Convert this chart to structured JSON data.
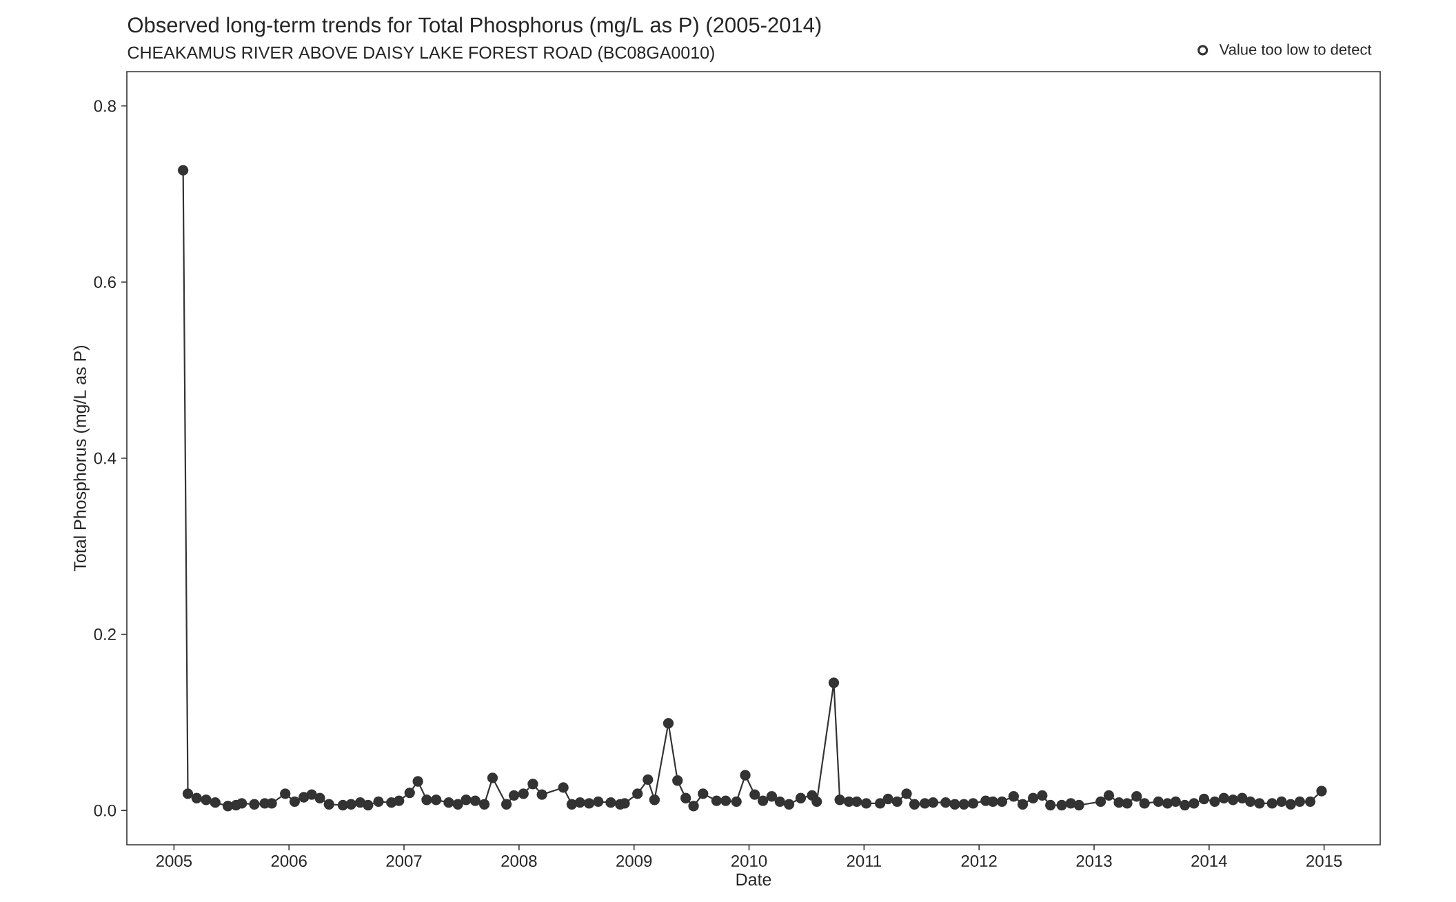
{
  "chart_data": {
    "type": "line",
    "title": "Observed long-term trends for Total Phosphorus (mg/L as P) (2005-2014)",
    "subtitle": "CHEAKAMUS RIVER ABOVE DAISY LAKE FOREST ROAD (BC08GA0010)",
    "xlabel": "Date",
    "ylabel": "Total Phosphorus (mg/L as P)",
    "xlim": [
      "2004-08-04",
      "2015-06-28"
    ],
    "xticks": [
      "2005",
      "2006",
      "2007",
      "2008",
      "2009",
      "2010",
      "2011",
      "2012",
      "2013",
      "2014",
      "2015"
    ],
    "ylim": [
      -0.039,
      0.839
    ],
    "yticks": [
      {
        "value": 0,
        "label": "0.0"
      },
      0.2,
      0.4,
      0.6,
      0.8
    ],
    "grid": false,
    "legend": "top right",
    "marker": "circle",
    "line_style": "solid",
    "series": [
      {
        "color": "#333333",
        "x": [
          "2005-01-30",
          "2005-02-14",
          "2005-03-14",
          "2005-04-13",
          "2005-05-12",
          "2005-06-21",
          "2005-07-17",
          "2005-08-04",
          "2005-09-13",
          "2005-10-16",
          "2005-11-07",
          "2005-12-20",
          "2006-01-19",
          "2006-02-17",
          "2006-03-14",
          "2006-04-09",
          "2006-05-08",
          "2006-06-21",
          "2006-07-17",
          "2006-08-15",
          "2006-09-09",
          "2006-10-12",
          "2006-11-22",
          "2006-12-16",
          "2007-01-19",
          "2007-02-14",
          "2007-03-14",
          "2007-04-13",
          "2007-05-23",
          "2007-06-21",
          "2007-07-17",
          "2007-08-15",
          "2007-09-13",
          "2007-10-09",
          "2007-11-22",
          "2007-12-16",
          "2008-01-15",
          "2008-02-14",
          "2008-03-14",
          "2008-05-21",
          "2008-06-17",
          "2008-07-13",
          "2008-08-11",
          "2008-09-09",
          "2008-10-19",
          "2008-11-18",
          "2008-12-02",
          "2009-01-12",
          "2009-02-14",
          "2009-03-07",
          "2009-04-20",
          "2009-05-19",
          "2009-06-14",
          "2009-07-09",
          "2009-08-08",
          "2009-09-20",
          "2009-10-19",
          "2009-11-22",
          "2009-12-20",
          "2010-01-19",
          "2010-02-14",
          "2010-03-14",
          "2010-04-09",
          "2010-05-08",
          "2010-06-14",
          "2010-07-20",
          "2010-08-04",
          "2010-09-27",
          "2010-10-16",
          "2010-11-14",
          "2010-12-09",
          "2011-01-08",
          "2011-02-21",
          "2011-03-18",
          "2011-04-16",
          "2011-05-16",
          "2011-06-10",
          "2011-07-13",
          "2011-08-08",
          "2011-09-17",
          "2011-10-16",
          "2011-11-14",
          "2011-12-13",
          "2012-01-22",
          "2012-02-14",
          "2012-03-14",
          "2012-04-20",
          "2012-05-19",
          "2012-06-21",
          "2012-07-20",
          "2012-08-15",
          "2012-09-20",
          "2012-10-19",
          "2012-11-14",
          "2013-01-22",
          "2013-02-17",
          "2013-03-21",
          "2013-04-16",
          "2013-05-16",
          "2013-06-10",
          "2013-07-24",
          "2013-08-22",
          "2013-09-17",
          "2013-10-16",
          "2013-11-14",
          "2013-12-16",
          "2014-01-19",
          "2014-02-17",
          "2014-03-18",
          "2014-04-16",
          "2014-05-12",
          "2014-06-10",
          "2014-07-20",
          "2014-08-19",
          "2014-09-17",
          "2014-10-16",
          "2014-11-18",
          "2014-12-24"
        ],
        "values": [
          0.727,
          0.019,
          0.014,
          0.012,
          0.009,
          0.005,
          0.006,
          0.008,
          0.007,
          0.008,
          0.008,
          0.019,
          0.01,
          0.015,
          0.018,
          0.014,
          0.007,
          0.006,
          0.007,
          0.009,
          0.006,
          0.01,
          0.009,
          0.011,
          0.02,
          0.033,
          0.012,
          0.012,
          0.009,
          0.007,
          0.012,
          0.011,
          0.007,
          0.037,
          0.007,
          0.017,
          0.019,
          0.03,
          0.018,
          0.026,
          0.007,
          0.009,
          0.008,
          0.01,
          0.009,
          0.007,
          0.008,
          0.019,
          0.035,
          0.012,
          0.099,
          0.034,
          0.014,
          0.005,
          0.019,
          0.011,
          0.011,
          0.01,
          0.04,
          0.018,
          0.011,
          0.016,
          0.01,
          0.007,
          0.014,
          0.017,
          0.01,
          0.145,
          0.012,
          0.01,
          0.01,
          0.008,
          0.008,
          0.013,
          0.01,
          0.019,
          0.007,
          0.008,
          0.009,
          0.009,
          0.007,
          0.007,
          0.008,
          0.011,
          0.01,
          0.01,
          0.016,
          0.007,
          0.014,
          0.017,
          0.006,
          0.006,
          0.008,
          0.006,
          0.01,
          0.017,
          0.009,
          0.008,
          0.016,
          0.008,
          0.01,
          0.008,
          0.01,
          0.006,
          0.008,
          0.013,
          0.01,
          0.014,
          0.012,
          0.014,
          0.01,
          0.008,
          0.008,
          0.01,
          0.007,
          0.01,
          0.01,
          0.022
        ]
      },
      {
        "type": "scatter",
        "name": "Value too low to detect",
        "color": "#333333"
      }
    ]
  }
}
